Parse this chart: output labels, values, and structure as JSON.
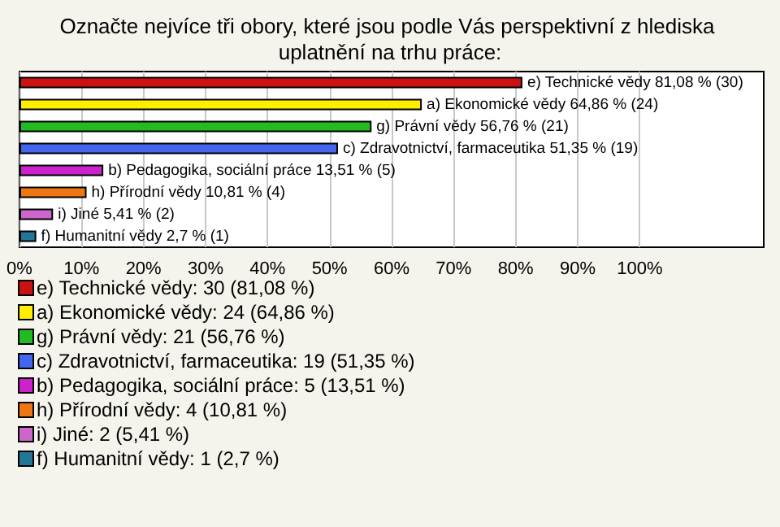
{
  "chart_data": {
    "type": "bar",
    "orientation": "horizontal",
    "stacked": true,
    "title": "Označte nejvíce tři obory, které jsou podle Vás perspektivní z hlediska uplatnění na trhu práce:",
    "categories": [
      null,
      null,
      null,
      null,
      null,
      null,
      null,
      null
    ],
    "series": [
      {
        "name": "e) Technické vědy: 30 (81,08 %)",
        "color": "#cc1111",
        "values": [
          81.08,
          null,
          null,
          null,
          null,
          null,
          null,
          null
        ],
        "value_labels": [
          "e) Technické vědy 81,08 % (30)",
          null,
          null,
          null,
          null,
          null,
          null,
          null
        ]
      },
      {
        "name": "a) Ekonomické vědy: 24 (64,86 %)",
        "color": "#ffee00",
        "values": [
          null,
          64.86,
          null,
          null,
          null,
          null,
          null,
          null
        ],
        "value_labels": [
          null,
          "a) Ekonomické vědy 64,86 % (24)",
          null,
          null,
          null,
          null,
          null,
          null
        ]
      },
      {
        "name": "g) Právní vědy: 21 (56,76 %)",
        "color": "#22bb22",
        "values": [
          null,
          null,
          56.76,
          null,
          null,
          null,
          null,
          null
        ],
        "value_labels": [
          null,
          null,
          "g) Právní vědy 56,76 % (21)",
          null,
          null,
          null,
          null,
          null
        ]
      },
      {
        "name": "c) Zdravotnictví, farmaceutika: 19 (51,35 %)",
        "color": "#4466ee",
        "values": [
          null,
          null,
          null,
          51.35,
          null,
          null,
          null,
          null
        ],
        "value_labels": [
          null,
          null,
          null,
          "c) Zdravotnictví, farmaceutika 51,35 % (19)",
          null,
          null,
          null,
          null
        ]
      },
      {
        "name": "b) Pedagogika, sociální práce: 5 (13,51 %)",
        "color": "#cc22cc",
        "values": [
          null,
          null,
          null,
          null,
          13.51,
          null,
          null,
          null
        ],
        "value_labels": [
          null,
          null,
          null,
          null,
          "b) Pedagogika, sociální práce 13,51 % (5)",
          null,
          null,
          null
        ]
      },
      {
        "name": "h) Přírodní vědy: 4 (10,81 %)",
        "color": "#ee7711",
        "values": [
          null,
          null,
          null,
          null,
          null,
          10.81,
          null,
          null
        ],
        "value_labels": [
          null,
          null,
          null,
          null,
          null,
          "h) Přírodní vědy 10,81 % (4)",
          null,
          null
        ]
      },
      {
        "name": "i) Jiné: 2 (5,41 %)",
        "color": "#cc66cc",
        "values": [
          null,
          null,
          null,
          null,
          null,
          null,
          5.41,
          null
        ],
        "value_labels": [
          null,
          null,
          null,
          null,
          null,
          null,
          "i) Jiné 5,41 % (2)",
          null
        ]
      },
      {
        "name": "f) Humanitní vědy: 1 (2,7 %)",
        "color": "#227799",
        "values": [
          null,
          null,
          null,
          null,
          null,
          null,
          null,
          2.7
        ],
        "value_labels": [
          null,
          null,
          null,
          null,
          null,
          null,
          null,
          "f) Humanitní vědy 2,7 % (1)"
        ]
      }
    ],
    "xlim": [
      0,
      120
    ],
    "xticks": [
      {
        "value": 0,
        "label": "0%"
      },
      {
        "value": 10,
        "label": "10%"
      },
      {
        "value": 20,
        "label": "20%"
      },
      {
        "value": 30,
        "label": "30%"
      },
      {
        "value": 40,
        "label": "40%"
      },
      {
        "value": 50,
        "label": "50%"
      },
      {
        "value": 60,
        "label": "60%"
      },
      {
        "value": 70,
        "label": "70%"
      },
      {
        "value": 80,
        "label": "80%"
      },
      {
        "value": 90,
        "label": "90%"
      },
      {
        "value": 100,
        "label": "100%"
      }
    ],
    "grid": "x",
    "legend": "bottom",
    "tick_labels": "x"
  }
}
